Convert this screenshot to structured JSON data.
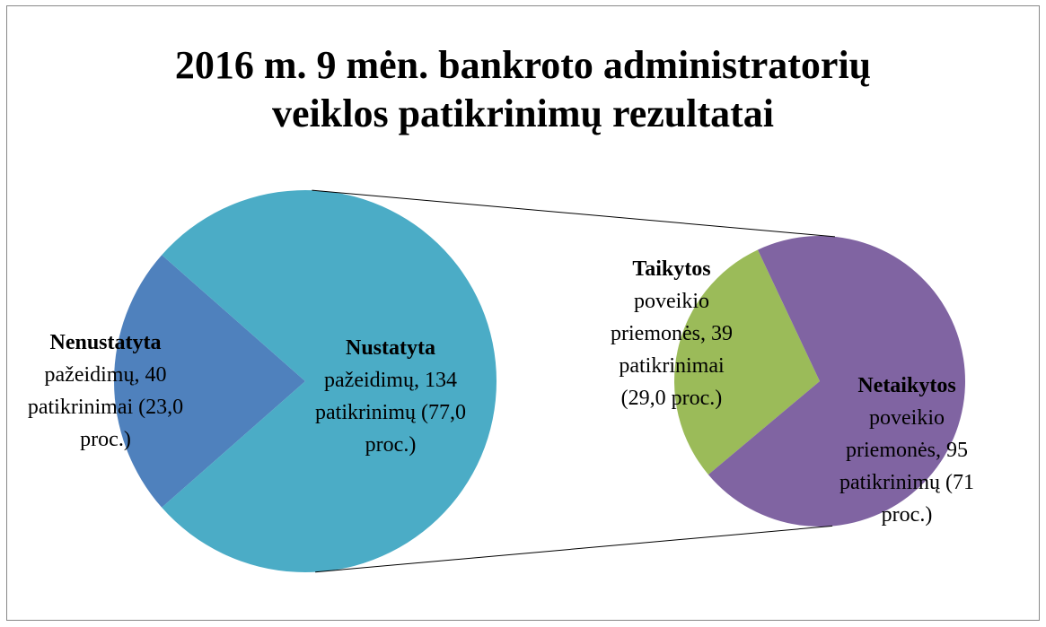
{
  "chart_data": [
    {
      "type": "pie",
      "title": "2016 m. 9 mėn. bankroto administratorių veiklos patikrinimų rezultatai",
      "categories": [
        "Nenustatyta",
        "Nustatyta"
      ],
      "values": [
        40,
        134
      ],
      "value_labels": [
        "pažeidimų, 40 patikrinimai (23,0 proc.)",
        "pažeidimų, 134 patikrinimų (77,0 proc.)"
      ],
      "colors": [
        "#4f81bd",
        "#4bacc6"
      ]
    },
    {
      "type": "pie",
      "categories": [
        "Taikytos",
        "Netaikytos"
      ],
      "values": [
        39,
        95
      ],
      "value_labels": [
        "poveikio priemonės, 39 patikrinimai (29,0 proc.)",
        "poveikio priemonės, 95 patikrinimų (71 proc.)"
      ],
      "colors": [
        "#9bbb59",
        "#8064a2"
      ]
    }
  ]
}
